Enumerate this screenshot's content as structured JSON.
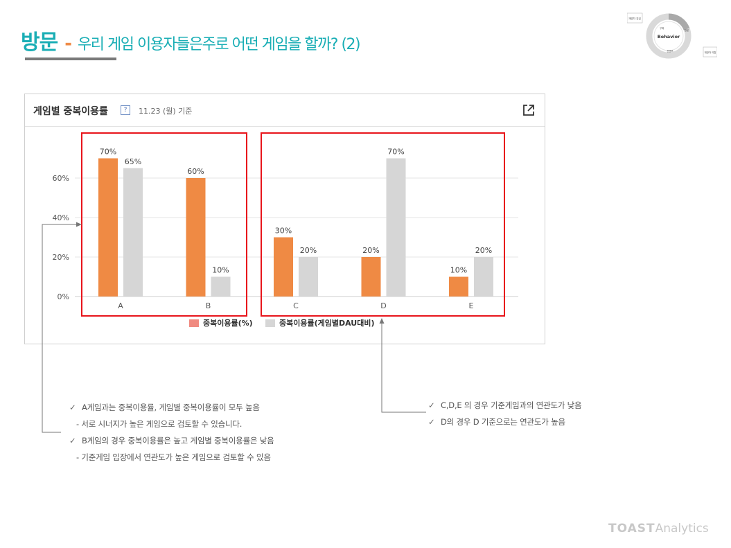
{
  "header": {
    "title_main": "방문",
    "title_dash": "-",
    "title_sub": "우리 게임 이용자들은주로 어떤 게임을 할까? (2)"
  },
  "cycle_diagram": {
    "center": "Behavior",
    "labels": [
      "재방자 유입",
      "구매",
      "방문",
      "컨텐츠",
      "재방자 이탈"
    ]
  },
  "panel": {
    "title": "게임별 중복이용률",
    "help": "?",
    "date": "11.23 (월) 기준"
  },
  "chart_data": {
    "type": "bar",
    "categories": [
      "A",
      "B",
      "C",
      "D",
      "E"
    ],
    "series": [
      {
        "name": "중복이용률(%)",
        "color": "#ef8a44",
        "values": [
          70,
          60,
          30,
          20,
          10
        ]
      },
      {
        "name": "중복이용률(게임별DAU대비)",
        "color": "#d6d6d6",
        "values": [
          65,
          10,
          20,
          70,
          20
        ]
      }
    ],
    "yticks": [
      "0%",
      "20%",
      "40%",
      "60%"
    ],
    "ylim": [
      0,
      80
    ],
    "value_suffix": "%",
    "grid": true,
    "legend": "bottom"
  },
  "notes_left": [
    {
      "check": true,
      "text": "A게임과는 중복이용률, 게임별 중복이용률이 모두 높음"
    },
    {
      "check": false,
      "text": "- 서로 시너지가 높은 게임으로 검토할 수 있습니다."
    },
    {
      "check": true,
      "text": "B게임의 경우 중복이용률은 높고 게임별 중복이용률은 낮음"
    },
    {
      "check": false,
      "text": "- 기준게임 입장에서 연관도가 높은 게임으로 검토할 수 있음"
    }
  ],
  "notes_right": [
    {
      "check": true,
      "text": "C,D,E 의 경우 기준게임과의 연관도가 낮음"
    },
    {
      "check": true,
      "text": "D의 경우 D 기준으로는 연관도가 높음"
    }
  ],
  "footer": {
    "brand": "TOAST",
    "product": "Analytics"
  }
}
